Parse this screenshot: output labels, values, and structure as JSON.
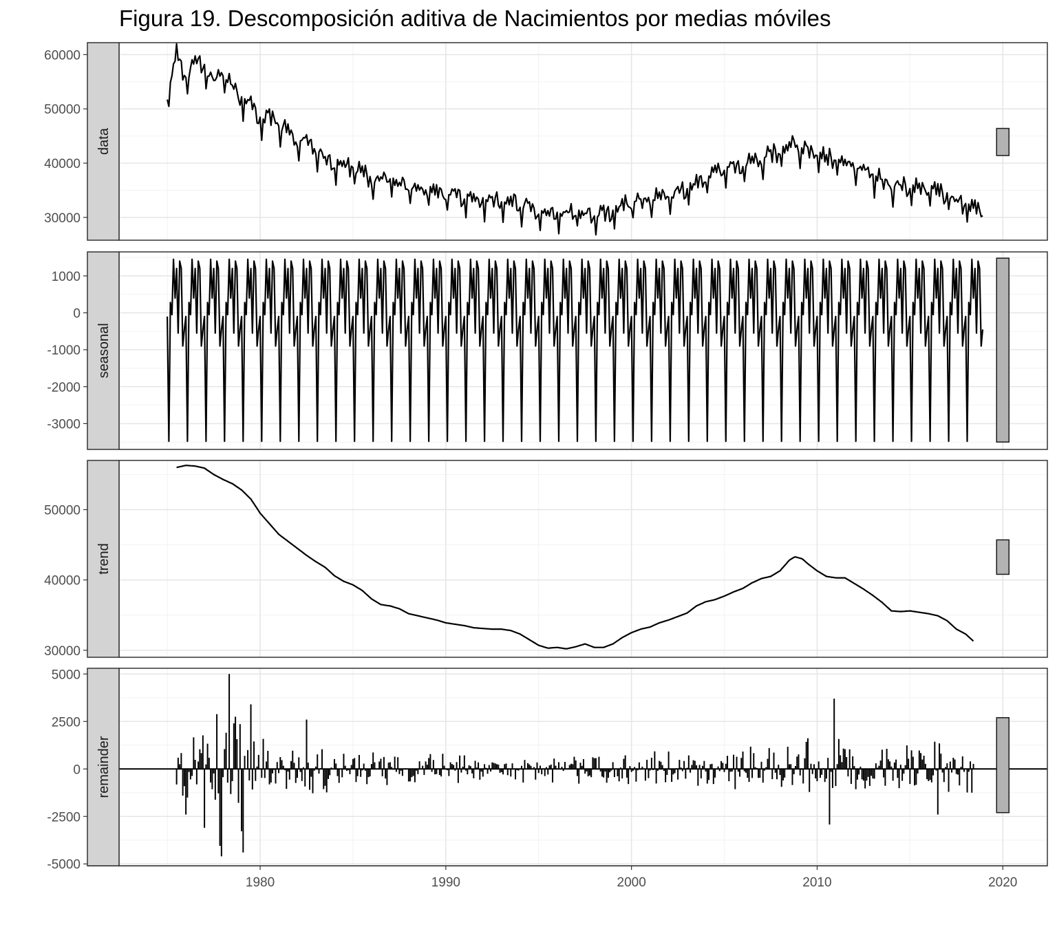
{
  "title": "Figura 19. Descomposición aditiva de Nacimientos por medias móviles",
  "colors": {
    "line": "#000000",
    "grid_major": "#e5e5e5",
    "grid_minor": "#f2f2f2",
    "strip_fill": "#d3d3d3",
    "range_bar": "#b3b3b3",
    "tick_text": "#4d4d4d"
  },
  "chart_data": {
    "type": "line",
    "x_start": 1975.0,
    "x_end": 2018.917,
    "frequency": 12,
    "xlim": [
      1972.4,
      2022.4
    ],
    "x_ticks": [
      1980,
      1990,
      2000,
      2010,
      2020
    ],
    "x_tick_labels": [
      "1980",
      "1990",
      "2000",
      "2010",
      "2020"
    ],
    "grid": true,
    "panels": [
      {
        "name": "data",
        "label": "data",
        "ylim": [
          25800,
          62200
        ],
        "y_ticks": [
          30000,
          40000,
          50000,
          60000
        ],
        "y_tick_labels": [
          "30000",
          "40000",
          "50000",
          "60000"
        ],
        "range_bar": [
          41400,
          46400
        ],
        "anchors": [
          [
            1975.0,
            52500
          ],
          [
            1975.5,
            60500
          ],
          [
            1976.0,
            55000
          ],
          [
            1976.5,
            58500
          ],
          [
            1977.0,
            57500
          ],
          [
            1977.5,
            54500
          ],
          [
            1978.0,
            57000
          ],
          [
            1978.5,
            54000
          ],
          [
            1979.0,
            51500
          ],
          [
            1979.5,
            50500
          ],
          [
            1980.0,
            48000
          ],
          [
            1980.5,
            48500
          ],
          [
            1981.0,
            47000
          ],
          [
            1981.5,
            45500
          ],
          [
            1982.0,
            44000
          ],
          [
            1982.5,
            43500
          ],
          [
            1983.0,
            42500
          ],
          [
            1983.5,
            41000
          ],
          [
            1984.0,
            40000
          ],
          [
            1984.5,
            39500
          ],
          [
            1985.0,
            39000
          ],
          [
            1985.5,
            38000
          ],
          [
            1986.0,
            37000
          ],
          [
            1987.0,
            36500
          ],
          [
            1988.0,
            35500
          ],
          [
            1989.0,
            34800
          ],
          [
            1990.0,
            34000
          ],
          [
            1991.0,
            33500
          ],
          [
            1992.0,
            33000
          ],
          [
            1993.0,
            33000
          ],
          [
            1994.0,
            32300
          ],
          [
            1995.0,
            30500
          ],
          [
            1996.0,
            30300
          ],
          [
            1997.0,
            30800
          ],
          [
            1998.0,
            30300
          ],
          [
            1999.0,
            31000
          ],
          [
            2000.0,
            32500
          ],
          [
            2001.0,
            33300
          ],
          [
            2002.0,
            34000
          ],
          [
            2003.0,
            35000
          ],
          [
            2004.0,
            37000
          ],
          [
            2005.0,
            38500
          ],
          [
            2006.0,
            39500
          ],
          [
            2007.0,
            40500
          ],
          [
            2008.0,
            42000
          ],
          [
            2008.7,
            43200
          ],
          [
            2009.5,
            42000
          ],
          [
            2010.0,
            41000
          ],
          [
            2011.0,
            40500
          ],
          [
            2012.0,
            39500
          ],
          [
            2013.0,
            37500
          ],
          [
            2014.0,
            35700
          ],
          [
            2015.0,
            35500
          ],
          [
            2016.0,
            35200
          ],
          [
            2017.0,
            34000
          ],
          [
            2018.0,
            32000
          ],
          [
            2018.917,
            30800
          ]
        ],
        "seasonal_overlay": true,
        "noise_amplitude": 900
      },
      {
        "name": "seasonal",
        "label": "seasonal",
        "ylim": [
          -3700,
          1650
        ],
        "y_ticks": [
          -3000,
          -2000,
          -1000,
          0,
          1000
        ],
        "y_tick_labels": [
          "-3000",
          "-2000",
          "-1000",
          "0",
          "1000"
        ],
        "range_bar": [
          -3500,
          1480
        ],
        "seasonal_pattern": [
          -100,
          -3480,
          280,
          -50,
          1450,
          400,
          1200,
          -550,
          1400,
          1200,
          -900,
          -450
        ]
      },
      {
        "name": "trend",
        "label": "trend",
        "ylim": [
          29000,
          57000
        ],
        "y_ticks": [
          30000,
          40000,
          50000
        ],
        "y_tick_labels": [
          "30000",
          "40000",
          "50000"
        ],
        "range_bar": [
          40800,
          45700
        ],
        "x_start": 1975.5,
        "x_end": 2018.417,
        "anchors": [
          [
            1975.5,
            56000
          ],
          [
            1976.0,
            56300
          ],
          [
            1976.5,
            56200
          ],
          [
            1977.0,
            55900
          ],
          [
            1977.5,
            55000
          ],
          [
            1978.0,
            54300
          ],
          [
            1978.5,
            53700
          ],
          [
            1979.0,
            52800
          ],
          [
            1979.5,
            51500
          ],
          [
            1980.0,
            49500
          ],
          [
            1980.5,
            48000
          ],
          [
            1981.0,
            46500
          ],
          [
            1981.5,
            45500
          ],
          [
            1982.0,
            44500
          ],
          [
            1982.5,
            43500
          ],
          [
            1983.0,
            42600
          ],
          [
            1983.5,
            41800
          ],
          [
            1984.0,
            40600
          ],
          [
            1984.5,
            39800
          ],
          [
            1985.0,
            39300
          ],
          [
            1985.5,
            38500
          ],
          [
            1986.0,
            37300
          ],
          [
            1986.5,
            36500
          ],
          [
            1987.0,
            36300
          ],
          [
            1987.5,
            35900
          ],
          [
            1988.0,
            35200
          ],
          [
            1988.5,
            34900
          ],
          [
            1989.0,
            34600
          ],
          [
            1989.5,
            34300
          ],
          [
            1990.0,
            33900
          ],
          [
            1990.5,
            33700
          ],
          [
            1991.0,
            33500
          ],
          [
            1991.5,
            33200
          ],
          [
            1992.0,
            33100
          ],
          [
            1992.5,
            33000
          ],
          [
            1993.0,
            33000
          ],
          [
            1993.5,
            32800
          ],
          [
            1994.0,
            32300
          ],
          [
            1994.5,
            31500
          ],
          [
            1995.0,
            30700
          ],
          [
            1995.5,
            30300
          ],
          [
            1996.0,
            30400
          ],
          [
            1996.5,
            30200
          ],
          [
            1997.0,
            30500
          ],
          [
            1997.5,
            30900
          ],
          [
            1998.0,
            30400
          ],
          [
            1998.5,
            30400
          ],
          [
            1999.0,
            30900
          ],
          [
            1999.5,
            31800
          ],
          [
            2000.0,
            32500
          ],
          [
            2000.5,
            33000
          ],
          [
            2001.0,
            33300
          ],
          [
            2001.5,
            33900
          ],
          [
            2002.0,
            34300
          ],
          [
            2002.5,
            34800
          ],
          [
            2003.0,
            35300
          ],
          [
            2003.5,
            36300
          ],
          [
            2004.0,
            36900
          ],
          [
            2004.5,
            37200
          ],
          [
            2005.0,
            37700
          ],
          [
            2005.5,
            38300
          ],
          [
            2006.0,
            38800
          ],
          [
            2006.5,
            39600
          ],
          [
            2007.0,
            40200
          ],
          [
            2007.5,
            40500
          ],
          [
            2008.0,
            41300
          ],
          [
            2008.5,
            42800
          ],
          [
            2008.8,
            43300
          ],
          [
            2009.2,
            43000
          ],
          [
            2009.5,
            42300
          ],
          [
            2010.0,
            41300
          ],
          [
            2010.5,
            40500
          ],
          [
            2011.0,
            40300
          ],
          [
            2011.5,
            40300
          ],
          [
            2012.0,
            39500
          ],
          [
            2012.5,
            38700
          ],
          [
            2013.0,
            37800
          ],
          [
            2013.5,
            36800
          ],
          [
            2014.0,
            35600
          ],
          [
            2014.5,
            35500
          ],
          [
            2015.0,
            35600
          ],
          [
            2015.5,
            35400
          ],
          [
            2016.0,
            35200
          ],
          [
            2016.5,
            34900
          ],
          [
            2017.0,
            34200
          ],
          [
            2017.5,
            33000
          ],
          [
            2018.0,
            32300
          ],
          [
            2018.417,
            31300
          ]
        ]
      },
      {
        "name": "remainder",
        "label": "remainder",
        "ylim": [
          -5100,
          5300
        ],
        "y_ticks": [
          -5000,
          -2500,
          0,
          2500,
          5000
        ],
        "y_tick_labels": [
          "-5000",
          "-2500",
          "0",
          "2500",
          "5000"
        ],
        "range_bar": [
          -2300,
          2700
        ],
        "x_start": 1975.5,
        "x_end": 2018.417,
        "display": "bars",
        "envelope": [
          [
            1975.5,
            2400
          ],
          [
            1977.0,
            3200
          ],
          [
            1978.3,
            5000
          ],
          [
            1979.5,
            2800
          ],
          [
            1981.0,
            1800
          ],
          [
            1983.0,
            1500
          ],
          [
            1985.0,
            1200
          ],
          [
            1988.0,
            900
          ],
          [
            1992.0,
            800
          ],
          [
            1996.0,
            900
          ],
          [
            2000.0,
            1000
          ],
          [
            2004.0,
            1100
          ],
          [
            2008.0,
            1400
          ],
          [
            2010.7,
            3000
          ],
          [
            2012.0,
            1800
          ],
          [
            2014.0,
            1400
          ],
          [
            2016.0,
            1900
          ],
          [
            2018.417,
            1500
          ]
        ],
        "spikes": [
          [
            1978.3,
            5000
          ],
          [
            1977.9,
            -4600
          ],
          [
            1979.1,
            -4400
          ],
          [
            1977.0,
            -3100
          ],
          [
            1979.5,
            3400
          ],
          [
            1976.0,
            -2400
          ],
          [
            2010.9,
            3700
          ],
          [
            2016.5,
            -2400
          ],
          [
            1978.6,
            2400
          ],
          [
            1982.5,
            2600
          ]
        ]
      }
    ]
  }
}
